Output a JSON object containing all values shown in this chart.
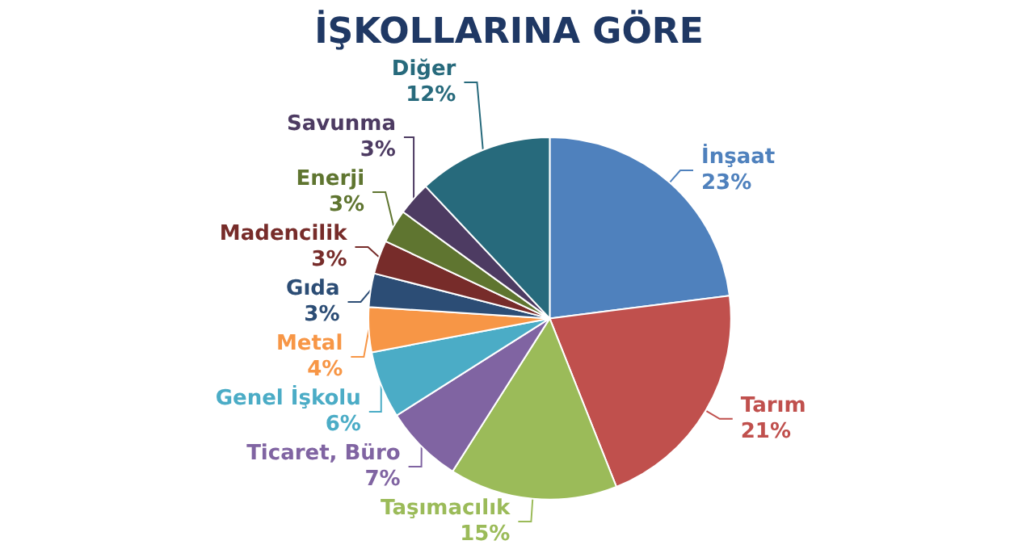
{
  "chart_data": {
    "type": "pie",
    "title": "İŞKOLLARINA GÖRE",
    "categories": [
      "İnşaat",
      "Tarım",
      "Taşımacılık",
      "Ticaret, Büro",
      "Genel İşkolu",
      "Metal",
      "Gıda",
      "Madencilik",
      "Enerji",
      "Savunma",
      "Diğer"
    ],
    "values": [
      23,
      21,
      15,
      7,
      6,
      4,
      3,
      3,
      3,
      3,
      12
    ],
    "value_labels": [
      "23%",
      "21%",
      "15%",
      "7%",
      "6%",
      "4%",
      "3%",
      "3%",
      "3%",
      "3%",
      "12%"
    ],
    "colors": [
      "#4f81bd",
      "#c0504d",
      "#9bbb59",
      "#8064a2",
      "#4bacc6",
      "#f79646",
      "#2c4d75",
      "#772c2a",
      "#5f7530",
      "#4d3b62",
      "#276a7c"
    ],
    "legend": false
  }
}
